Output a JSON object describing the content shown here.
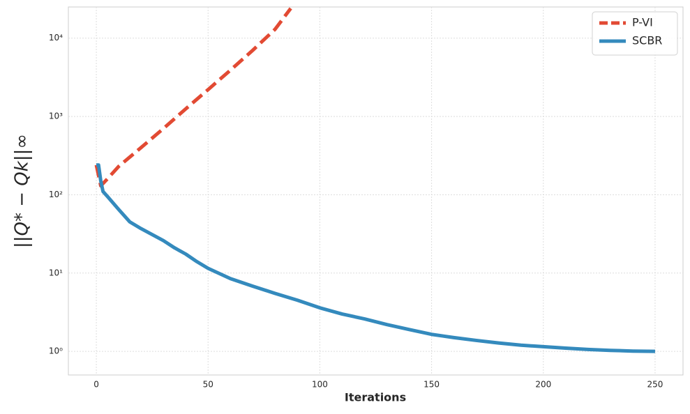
{
  "chart_data": {
    "type": "line",
    "x_label": "Iterations",
    "y_label": "||Q* − Qk||∞",
    "xlim": [
      -12.5,
      262.5
    ],
    "ylim": [
      0.5,
      25000
    ],
    "yscale": "log",
    "xticks": [
      0,
      50,
      100,
      150,
      200,
      250
    ],
    "yticks": [
      {
        "value": 1,
        "label": "10⁰"
      },
      {
        "value": 10,
        "label": "10¹"
      },
      {
        "value": 100,
        "label": "10²"
      },
      {
        "value": 1000,
        "label": "10³"
      },
      {
        "value": 10000,
        "label": "10⁴"
      }
    ],
    "grid": true,
    "legend": "upper right",
    "series": [
      {
        "name": "P-VI",
        "color": "#e24a33",
        "dash": true,
        "x": [
          0,
          2,
          5,
          10,
          20,
          30,
          40,
          50,
          60,
          70,
          80,
          87
        ],
        "values": [
          240,
          130,
          160,
          230,
          400,
          700,
          1250,
          2200,
          3900,
          7000,
          13000,
          24000
        ]
      },
      {
        "name": "SCBR",
        "color": "#348abd",
        "dash": false,
        "x": [
          0,
          1,
          2,
          3,
          5,
          10,
          15,
          20,
          25,
          30,
          35,
          40,
          45,
          50,
          60,
          70,
          80,
          90,
          100,
          110,
          120,
          130,
          140,
          150,
          160,
          170,
          180,
          190,
          200,
          210,
          220,
          230,
          240,
          250
        ],
        "values": [
          240,
          240,
          150,
          110,
          95,
          65,
          45,
          37,
          31,
          26,
          21,
          17.5,
          14,
          11.5,
          8.5,
          6.8,
          5.5,
          4.5,
          3.6,
          3.0,
          2.6,
          2.2,
          1.9,
          1.65,
          1.5,
          1.38,
          1.28,
          1.2,
          1.15,
          1.1,
          1.06,
          1.03,
          1.01,
          1.0
        ]
      }
    ]
  }
}
